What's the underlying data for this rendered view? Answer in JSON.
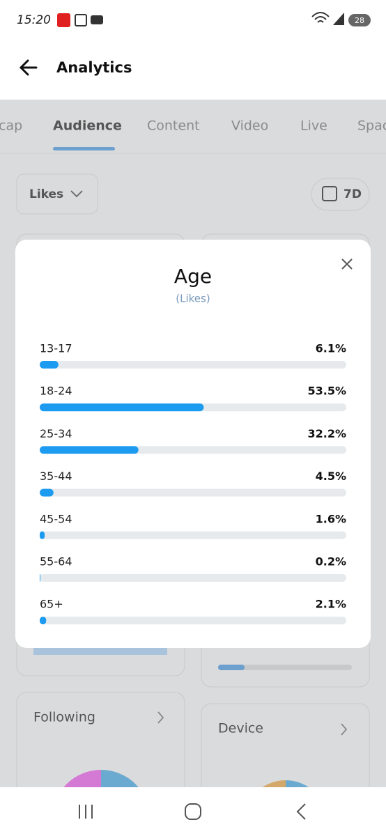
{
  "status_bar": {
    "time": "15:20",
    "battery": "28"
  },
  "header": {
    "title": "Analytics"
  },
  "tabs": [
    "cap",
    "Audience",
    "Content",
    "Video",
    "Live",
    "Spac"
  ],
  "filters": {
    "metric": "Likes",
    "period": "7D"
  },
  "cards": {
    "following": "Following",
    "device": "Device"
  },
  "chart_data": {
    "type": "bar",
    "title": "Age",
    "subtitle": "(Likes)",
    "categories": [
      "13-17",
      "18-24",
      "25-34",
      "35-44",
      "45-54",
      "55-64",
      "65+"
    ],
    "values": [
      6.1,
      53.5,
      32.2,
      4.5,
      1.6,
      0.2,
      2.1
    ],
    "value_labels": [
      "6.1%",
      "53.5%",
      "32.2%",
      "4.5%",
      "1.6%",
      "0.2%",
      "2.1%"
    ],
    "xlim": [
      0,
      100
    ],
    "color": "#1d9bf0"
  }
}
